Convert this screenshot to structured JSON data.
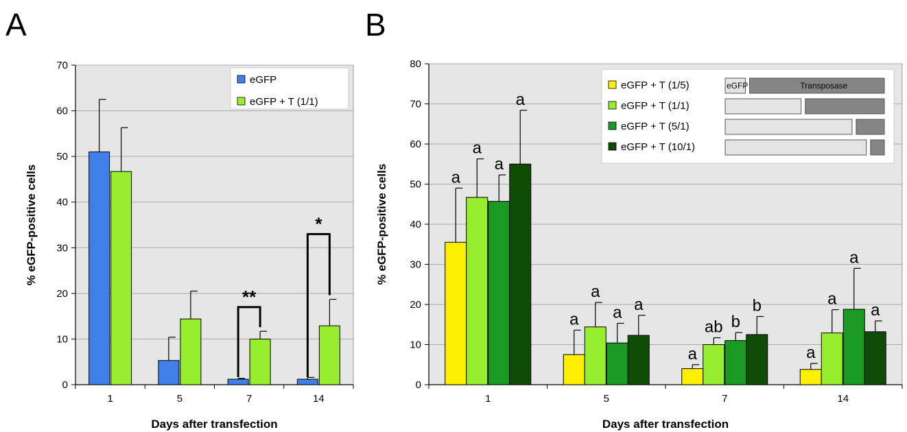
{
  "panels": {
    "a": {
      "letter": "A"
    },
    "b": {
      "letter": "B"
    }
  },
  "colors": {
    "plot_bg": "#e6e6e6",
    "grid": "#a8a8a8",
    "egfp_blue": "#3f7fe8",
    "yellow": "#ffef00",
    "light_green": "#96ee2e",
    "medium_green": "#1a9a22",
    "dark_green": "#0f4d07",
    "construct_light": "#e4e4e4",
    "construct_dark": "#858585"
  },
  "chart_data": [
    {
      "type": "bar",
      "panel": "A",
      "title": "",
      "xlabel": "Days after transfection",
      "ylabel": "% eGFP-positive cells",
      "ylim": [
        0,
        70
      ],
      "yticks": [
        0,
        10,
        20,
        30,
        40,
        50,
        60,
        70
      ],
      "grid": true,
      "legend_position": "top-right",
      "categories": [
        "1",
        "5",
        "7",
        "14"
      ],
      "series": [
        {
          "name": "eGFP",
          "color": "#3f7fe8",
          "values": [
            51,
            5.3,
            1.2,
            1.2
          ],
          "errors": [
            11.5,
            5.1,
            0.2,
            0.4
          ]
        },
        {
          "name": "eGFP + T (1/1)",
          "color": "#96ee2e",
          "values": [
            46.7,
            14.4,
            10,
            12.9
          ],
          "errors": [
            9.6,
            6.1,
            1.7,
            5.8
          ]
        }
      ],
      "significance": [
        {
          "category": "7",
          "label": "**",
          "bracket_top": 17
        },
        {
          "category": "14",
          "label": "*",
          "bracket_top": 33
        }
      ]
    },
    {
      "type": "bar",
      "panel": "B",
      "title": "",
      "xlabel": "Days after transfection",
      "ylabel": "% eGFP-positive cells",
      "ylim": [
        0,
        80
      ],
      "yticks": [
        0,
        10,
        20,
        30,
        40,
        50,
        60,
        70,
        80
      ],
      "grid": true,
      "legend_position": "top-right",
      "categories": [
        "1",
        "5",
        "7",
        "14"
      ],
      "series": [
        {
          "name": "eGFP + T (1/5)",
          "color": "#ffef00",
          "values": [
            35.5,
            7.5,
            4,
            3.8
          ],
          "errors": [
            13.5,
            6.1,
            1,
            1.5
          ],
          "labels": [
            "a",
            "a",
            "a",
            "a"
          ],
          "construct": [
            0.14,
            0.86
          ]
        },
        {
          "name": "eGFP + T (1/1)",
          "color": "#96ee2e",
          "values": [
            46.7,
            14.4,
            10,
            12.9
          ],
          "errors": [
            9.6,
            6.1,
            1.7,
            5.8
          ],
          "labels": [
            "a",
            "a",
            "ab",
            "a"
          ],
          "construct": [
            0.49,
            0.51
          ]
        },
        {
          "name": "eGFP + T (5/1)",
          "color": "#1a9a22",
          "values": [
            45.7,
            10.4,
            11,
            18.8
          ],
          "errors": [
            6.6,
            4.9,
            2,
            10.2
          ],
          "labels": [
            "a",
            "a",
            "b",
            "a"
          ],
          "construct": [
            0.81,
            0.19
          ]
        },
        {
          "name": "eGFP + T (10/1)",
          "color": "#0f4d07",
          "values": [
            55,
            12.3,
            12.5,
            13.2
          ],
          "errors": [
            13.4,
            5,
            4.5,
            2.7
          ],
          "labels": [
            "a",
            "a",
            "b",
            "a"
          ],
          "construct": [
            0.9,
            0.1
          ]
        }
      ],
      "construct_labels": {
        "egfp": "eGFP",
        "transposase": "Transposase"
      }
    }
  ]
}
